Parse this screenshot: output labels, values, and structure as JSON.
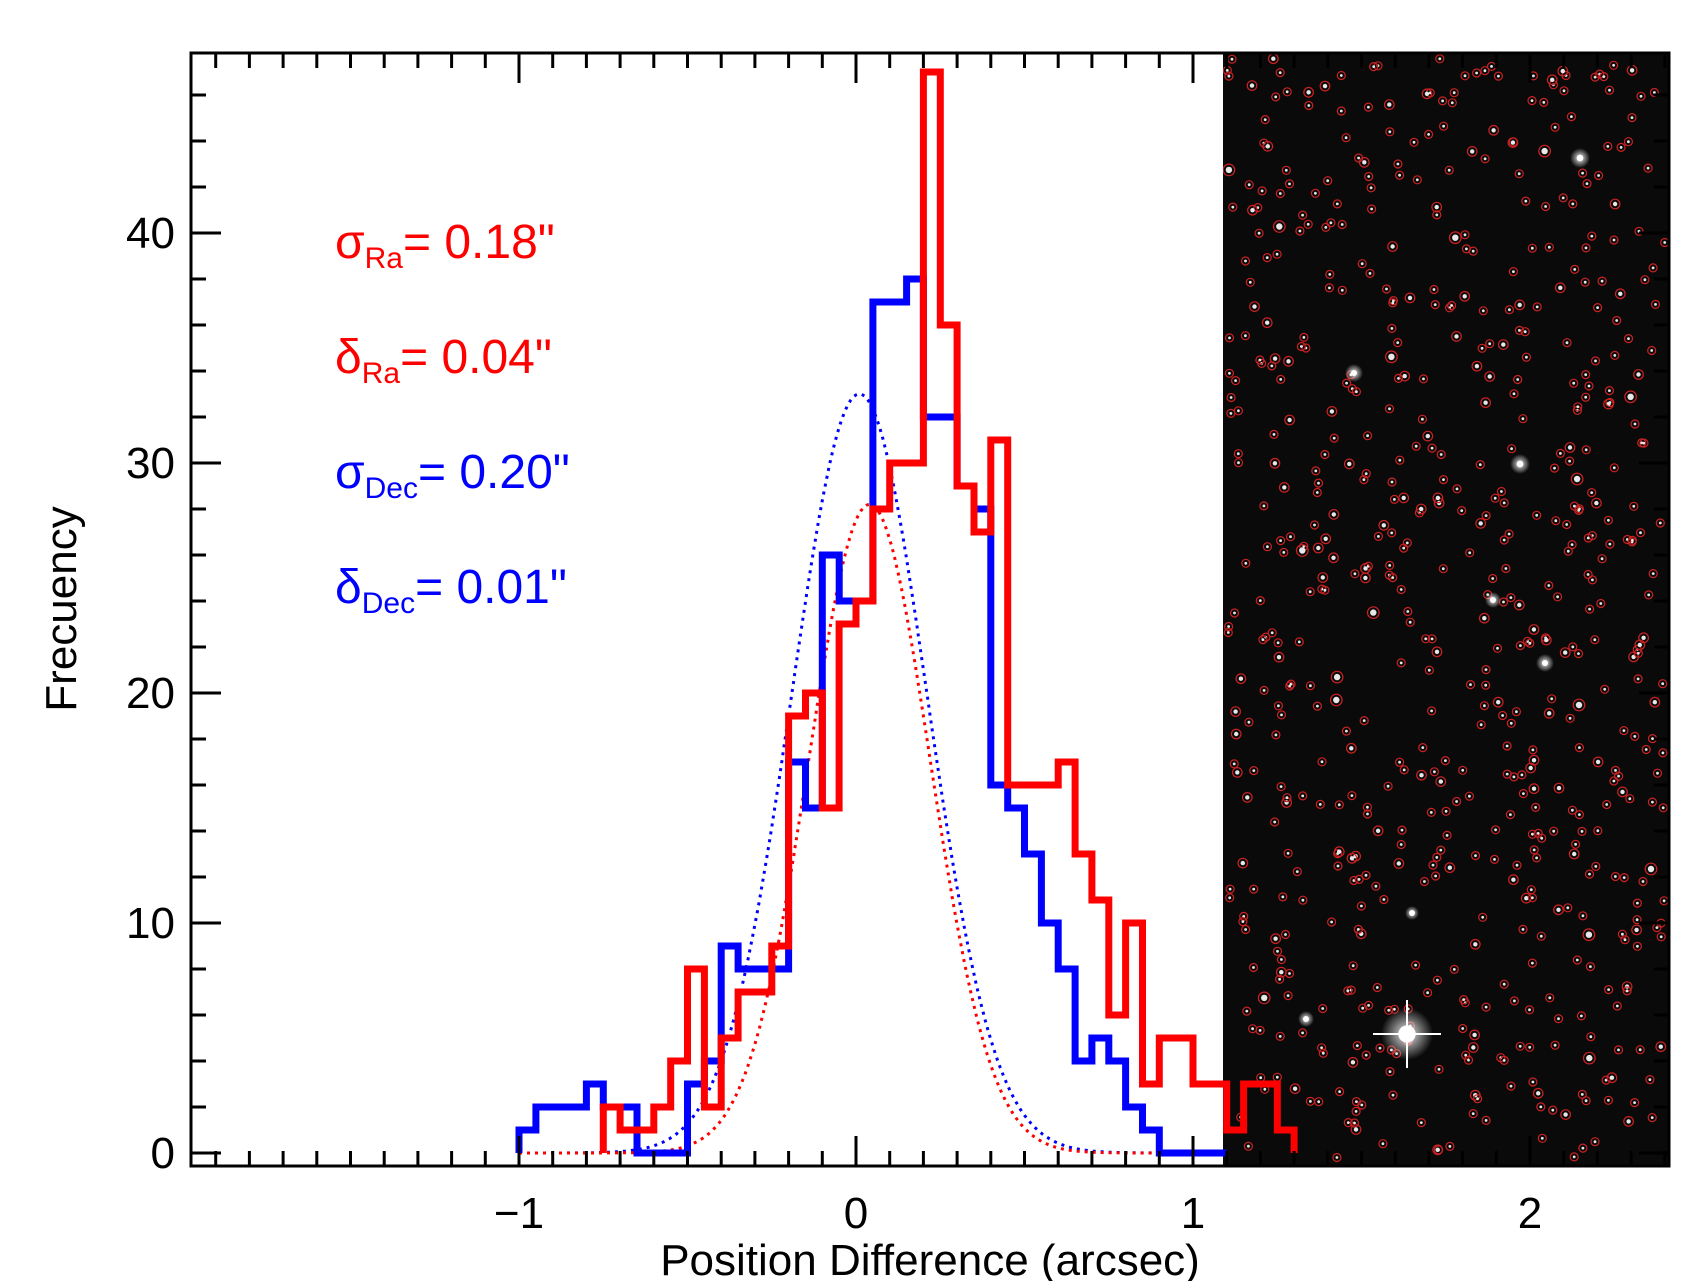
{
  "chart_data": {
    "type": "histogram",
    "xlabel": "Position Difference (arcsec)",
    "ylabel": "Frecuency",
    "xlim": [
      -2.0,
      2.4
    ],
    "ylim": [
      0,
      48
    ],
    "x_ticks": [
      {
        "value": -1,
        "label": "−1"
      },
      {
        "value": 0,
        "label": "0"
      },
      {
        "value": 1,
        "label": "1"
      },
      {
        "value": 2,
        "label": "2"
      }
    ],
    "y_ticks": [
      {
        "value": 0,
        "label": "0"
      },
      {
        "value": 10,
        "label": "10"
      },
      {
        "value": 20,
        "label": "20"
      },
      {
        "value": 30,
        "label": "30"
      },
      {
        "value": 40,
        "label": "40"
      }
    ],
    "bin_width": 0.05,
    "series": [
      {
        "color": "#0000ff",
        "bin_start": -1.0,
        "counts": [
          1,
          2,
          2,
          2,
          3,
          2,
          2,
          0,
          0,
          0,
          3,
          4,
          9,
          8,
          8,
          8,
          17,
          15,
          26,
          24,
          24,
          37,
          37,
          38,
          32,
          32,
          29,
          28,
          16,
          15,
          13,
          10,
          8,
          4,
          5,
          4,
          2,
          1,
          0,
          0,
          0,
          0
        ]
      },
      {
        "color": "#ff0000",
        "bin_start": -0.75,
        "counts": [
          2,
          1,
          1,
          2,
          4,
          8,
          2,
          5,
          7,
          7,
          9,
          19,
          20,
          15,
          23,
          24,
          28,
          30,
          30,
          47,
          36,
          29,
          27,
          31,
          16,
          16,
          16,
          17,
          13,
          11,
          6,
          10,
          3,
          5,
          5,
          3,
          3,
          1,
          3,
          3,
          1
        ]
      }
    ],
    "fits": [
      {
        "color": "#0000ff",
        "mean": 0.01,
        "sigma": 0.2,
        "peak": 33
      },
      {
        "color": "#ff0000",
        "mean": 0.04,
        "sigma": 0.18,
        "peak": 28.2
      }
    ],
    "annotations": [
      {
        "symbol": "σ",
        "sub": "Ra",
        "text": "= 0.18\"",
        "color": "#ff0000"
      },
      {
        "symbol": "δ",
        "sub": "Ra",
        "text": "= 0.04\"",
        "color": "#ff0000"
      },
      {
        "symbol": "σ",
        "sub": "Dec",
        "text": "= 0.20\"",
        "color": "#0000ff"
      },
      {
        "symbol": "δ",
        "sub": "Dec",
        "text": "= 0.01\"",
        "color": "#0000ff"
      }
    ],
    "inset": {
      "type": "star-field-image",
      "background": "#0a0a0a",
      "marker_color": "#cc2222"
    }
  }
}
